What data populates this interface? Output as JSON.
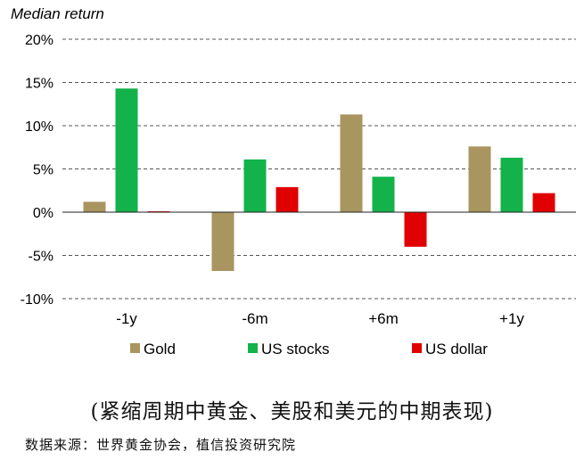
{
  "chart_data": {
    "type": "bar",
    "ylabel": "Median return",
    "categories": [
      "-1y",
      "-6m",
      "+6m",
      "+1y"
    ],
    "series": [
      {
        "name": "Gold",
        "color": "#A99560",
        "values": [
          1.2,
          -6.8,
          11.3,
          7.6
        ]
      },
      {
        "name": "US stocks",
        "color": "#14B24A",
        "values": [
          14.3,
          6.1,
          4.1,
          6.3
        ]
      },
      {
        "name": "US dollar",
        "color": "#E00000",
        "values": [
          0.1,
          2.9,
          -4.0,
          2.2
        ]
      }
    ],
    "ylim": [
      -10,
      20
    ],
    "yticks": [
      -10,
      -5,
      0,
      5,
      10,
      15,
      20
    ],
    "ytick_labels": [
      "-10%",
      "-5%",
      "0%",
      "5%",
      "10%",
      "15%",
      "20%"
    ],
    "grid": true,
    "legend_position": "bottom"
  },
  "caption": "(紧缩周期中黄金、美股和美元的中期表现)",
  "source": "数据来源：世界黄金协会，植信投资研究院"
}
